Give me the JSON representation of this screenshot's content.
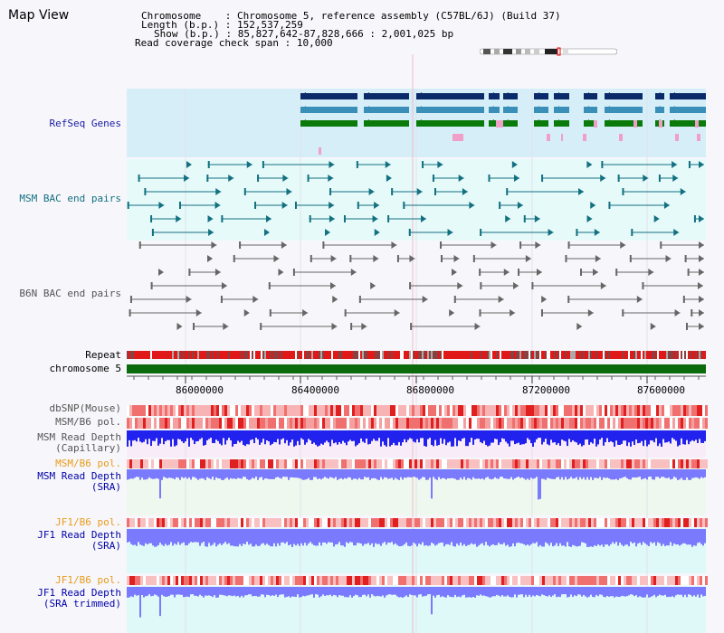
{
  "page": {
    "title": "Map View"
  },
  "info": {
    "chromosome_key": "Chromosome",
    "chromosome_value": "Chromosome 5, reference assembly (C57BL/6J) (Build 37)",
    "length_key": "Length (b.p.)",
    "length_value": "152,537,259",
    "show_key": "Show (b.p.)",
    "show_value": "85,827,642-87,828,666 : 2,001,025 bp",
    "coverage_key": "Read coverage check span",
    "coverage_value": "10,000"
  },
  "tracks": {
    "refseq": "RefSeq Genes",
    "msm_bac": "MSM BAC end pairs",
    "b6n_bac": "B6N BAC end pairs",
    "repeat": "Repeat",
    "chromosome": "chromosome 5",
    "dbsnp": "dbSNP(Mouse)",
    "msm_b6_pol": "MSM/B6 pol.",
    "msm_depth_cap_1": "MSM Read Depth",
    "msm_depth_cap_2": "(Capillary)",
    "msm_b6_pol_2": "MSM/B6 pol.",
    "msm_depth_sra_1": "MSM Read Depth",
    "msm_depth_sra_2": "(SRA)",
    "jf1_b6_pol": "JF1/B6 pol.",
    "jf1_depth_sra_1": "JF1 Read Depth",
    "jf1_depth_sra_2": "(SRA)",
    "jf1_b6_pol_2": "JF1/B6 pol.",
    "jf1_depth_trim_1": "JF1 Read Depth",
    "jf1_depth_trim_2": "(SRA trimmed)"
  },
  "axis": {
    "ticks": [
      "86000000",
      "86400000",
      "86800000",
      "87200000",
      "87600000"
    ]
  },
  "colors": {
    "refseq_bg": "#d6eef8",
    "bac_bg": "#e6fafa",
    "refseq_dark": "#0a2a6a",
    "refseq_mid": "#3a8fb8",
    "refseq_green": "#0a7a0a",
    "chromosome_bar": "#0b6a0b",
    "depth_blue": "#2222ee",
    "depth_light": "#7a7aff"
  }
}
